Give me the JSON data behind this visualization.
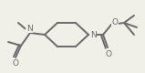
{
  "bg_color": "#f0efe8",
  "line_color": "#6a6a6a",
  "line_width": 1.4,
  "figsize": [
    1.59,
    0.8
  ],
  "dpi": 100,
  "xlim": [
    0,
    159
  ],
  "ylim": [
    0,
    80
  ]
}
